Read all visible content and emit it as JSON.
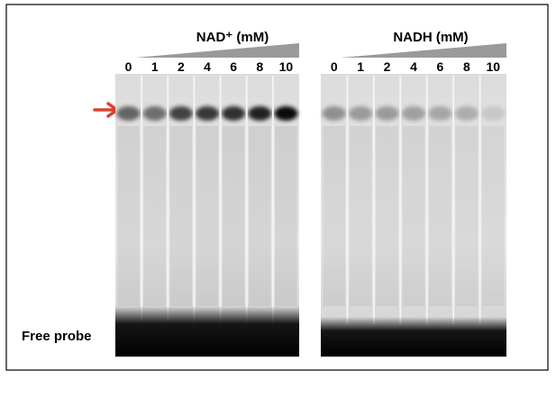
{
  "panels": [
    {
      "title": "NAD⁺ (mM)",
      "lanes": [
        0,
        1,
        2,
        4,
        6,
        8,
        10
      ]
    },
    {
      "title": "NADH (mM)",
      "lanes": [
        0,
        1,
        2,
        4,
        6,
        8,
        10
      ]
    }
  ],
  "free_probe_label": "Free probe"
}
